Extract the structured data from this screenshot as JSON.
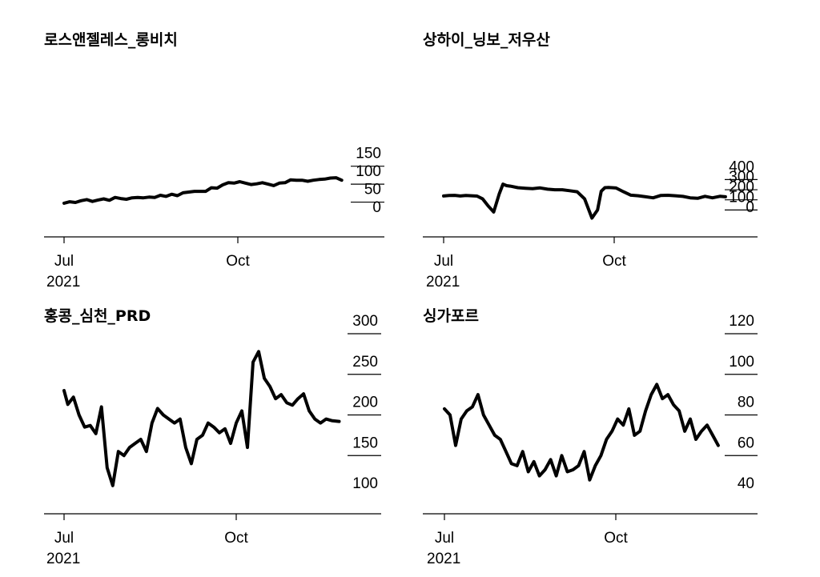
{
  "chart_data": [
    {
      "type": "line",
      "title": "로스앤젤레스_롱비치",
      "x_ticks": [
        "Jul",
        "Oct"
      ],
      "x_year": "2021",
      "y_ticks": [
        0,
        50,
        100,
        150
      ],
      "ylim": [
        0,
        150
      ],
      "grid": true,
      "series": [
        {
          "x": [
            "2021-07-01",
            "2021-07-04",
            "2021-07-07",
            "2021-07-10",
            "2021-07-13",
            "2021-07-16",
            "2021-07-19",
            "2021-07-22",
            "2021-07-25",
            "2021-07-28",
            "2021-07-31",
            "2021-08-03",
            "2021-08-06",
            "2021-08-09",
            "2021-08-12",
            "2021-08-15",
            "2021-08-18",
            "2021-08-21",
            "2021-08-24",
            "2021-08-27",
            "2021-08-30",
            "2021-09-02",
            "2021-09-05",
            "2021-09-08",
            "2021-09-11",
            "2021-09-14",
            "2021-09-17",
            "2021-09-20",
            "2021-09-23",
            "2021-09-26",
            "2021-09-29",
            "2021-10-02",
            "2021-10-05",
            "2021-10-08",
            "2021-10-11",
            "2021-10-14",
            "2021-10-17",
            "2021-10-20",
            "2021-10-23",
            "2021-10-26",
            "2021-10-29",
            "2021-11-01",
            "2021-11-04",
            "2021-11-07",
            "2021-11-10",
            "2021-11-13",
            "2021-11-16",
            "2021-11-19",
            "2021-11-22",
            "2021-11-25"
          ],
          "y": [
            47,
            51,
            49,
            54,
            57,
            52,
            56,
            59,
            55,
            63,
            60,
            58,
            62,
            63,
            62,
            64,
            63,
            69,
            66,
            72,
            68,
            76,
            78,
            80,
            80,
            80,
            90,
            89,
            98,
            104,
            103,
            107,
            103,
            99,
            101,
            104,
            100,
            96,
            103,
            104,
            112,
            111,
            111,
            108,
            111,
            113,
            114,
            117,
            118,
            111
          ]
        }
      ]
    },
    {
      "type": "line",
      "title": "상하이_닝보_저우산",
      "x_ticks": [
        "Jul",
        "Oct"
      ],
      "x_year": "2021",
      "y_ticks": [
        0,
        100,
        200,
        300,
        400
      ],
      "ylim": [
        0,
        400
      ],
      "grid": true,
      "series": [
        {
          "x": [
            "2021-07-01",
            "2021-07-04",
            "2021-07-07",
            "2021-07-10",
            "2021-07-13",
            "2021-07-16",
            "2021-07-19",
            "2021-07-22",
            "2021-07-25",
            "2021-07-28",
            "2021-07-31",
            "2021-08-02",
            "2021-08-04",
            "2021-08-06",
            "2021-08-10",
            "2021-08-14",
            "2021-08-18",
            "2021-08-22",
            "2021-08-26",
            "2021-08-30",
            "2021-09-03",
            "2021-09-07",
            "2021-09-11",
            "2021-09-15",
            "2021-09-19",
            "2021-09-22",
            "2021-09-24",
            "2021-09-26",
            "2021-09-28",
            "2021-10-02",
            "2021-10-06",
            "2021-10-10",
            "2021-10-14",
            "2021-10-18",
            "2021-10-22",
            "2021-10-26",
            "2021-10-30",
            "2021-11-03",
            "2021-11-07",
            "2021-11-11",
            "2021-11-15",
            "2021-11-19",
            "2021-11-23",
            "2021-11-27",
            "2021-11-30"
          ],
          "y": [
            238,
            243,
            244,
            238,
            243,
            240,
            237,
            210,
            140,
            80,
            260,
            355,
            340,
            335,
            320,
            315,
            310,
            318,
            305,
            300,
            300,
            290,
            280,
            210,
            20,
            100,
            285,
            320,
            322,
            317,
            280,
            246,
            240,
            230,
            220,
            243,
            245,
            240,
            234,
            220,
            215,
            235,
            220,
            235,
            230
          ]
        }
      ]
    },
    {
      "type": "line",
      "title": "홍콩_심천_PRD",
      "x_ticks": [
        "Jul",
        "Oct"
      ],
      "x_year": "2021",
      "y_ticks": [
        100,
        150,
        200,
        250,
        300
      ],
      "ylim": [
        100,
        300
      ],
      "grid": true,
      "series": [
        {
          "x": [
            "2021-07-01",
            "2021-07-03",
            "2021-07-06",
            "2021-07-09",
            "2021-07-12",
            "2021-07-15",
            "2021-07-18",
            "2021-07-21",
            "2021-07-24",
            "2021-07-27",
            "2021-07-30",
            "2021-08-02",
            "2021-08-05",
            "2021-08-08",
            "2021-08-11",
            "2021-08-14",
            "2021-08-17",
            "2021-08-20",
            "2021-08-23",
            "2021-08-26",
            "2021-08-29",
            "2021-09-01",
            "2021-09-04",
            "2021-09-07",
            "2021-09-10",
            "2021-09-13",
            "2021-09-16",
            "2021-09-19",
            "2021-09-22",
            "2021-09-25",
            "2021-09-28",
            "2021-10-01",
            "2021-10-04",
            "2021-10-07",
            "2021-10-10",
            "2021-10-13",
            "2021-10-16",
            "2021-10-19",
            "2021-10-22",
            "2021-10-25",
            "2021-10-28",
            "2021-10-31",
            "2021-11-03",
            "2021-11-06",
            "2021-11-09",
            "2021-11-12",
            "2021-11-15",
            "2021-11-18",
            "2021-11-21",
            "2021-11-25"
          ],
          "y": [
            230,
            213,
            222,
            200,
            185,
            187,
            177,
            210,
            135,
            113,
            155,
            150,
            160,
            165,
            170,
            155,
            190,
            208,
            200,
            195,
            190,
            195,
            160,
            140,
            170,
            175,
            190,
            185,
            178,
            183,
            165,
            190,
            205,
            160,
            265,
            278,
            245,
            235,
            220,
            225,
            215,
            212,
            220,
            226,
            205,
            195,
            190,
            195,
            193,
            192
          ]
        }
      ]
    },
    {
      "type": "line",
      "title": "싱가포르",
      "x_ticks": [
        "Jul",
        "Oct"
      ],
      "x_year": "2021",
      "y_ticks": [
        40,
        60,
        80,
        100,
        120
      ],
      "ylim": [
        40,
        120
      ],
      "grid": true,
      "series": [
        {
          "x": [
            "2021-07-01",
            "2021-07-04",
            "2021-07-07",
            "2021-07-10",
            "2021-07-13",
            "2021-07-16",
            "2021-07-19",
            "2021-07-22",
            "2021-07-25",
            "2021-07-28",
            "2021-07-31",
            "2021-08-03",
            "2021-08-06",
            "2021-08-09",
            "2021-08-12",
            "2021-08-15",
            "2021-08-18",
            "2021-08-21",
            "2021-08-24",
            "2021-08-27",
            "2021-08-30",
            "2021-09-02",
            "2021-09-05",
            "2021-09-08",
            "2021-09-11",
            "2021-09-14",
            "2021-09-17",
            "2021-09-20",
            "2021-09-23",
            "2021-09-26",
            "2021-09-29",
            "2021-10-02",
            "2021-10-05",
            "2021-10-08",
            "2021-10-11",
            "2021-10-14",
            "2021-10-17",
            "2021-10-20",
            "2021-10-23",
            "2021-10-26",
            "2021-10-29",
            "2021-11-01",
            "2021-11-04",
            "2021-11-07",
            "2021-11-10",
            "2021-11-13",
            "2021-11-16",
            "2021-11-19",
            "2021-11-22",
            "2021-11-25"
          ],
          "y": [
            83,
            80,
            65,
            78,
            82,
            84,
            90,
            80,
            75,
            70,
            68,
            62,
            56,
            55,
            62,
            52,
            57,
            50,
            53,
            58,
            50,
            60,
            52,
            53,
            55,
            62,
            48,
            55,
            60,
            68,
            72,
            78,
            75,
            83,
            70,
            72,
            82,
            90,
            95,
            88,
            90,
            85,
            82,
            72,
            78,
            68,
            72,
            75,
            70,
            65
          ]
        }
      ]
    }
  ]
}
